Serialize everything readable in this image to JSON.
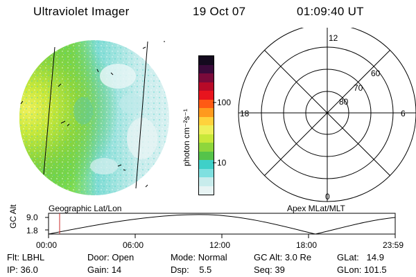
{
  "header": {
    "instrument": "Ultraviolet Imager",
    "date": "19 Oct 07",
    "time": "01:09:40 UT"
  },
  "colorbar": {
    "unit_label": "photon cm⁻²s⁻¹",
    "tick_10": "10",
    "tick_100": "100",
    "colors": [
      "#e8f4f4",
      "#c8ecec",
      "#7fe0e0",
      "#3fd0c8",
      "#55c34a",
      "#8ed63c",
      "#c8e83a",
      "#eef05a",
      "#ffd23c",
      "#ff9a1e",
      "#ff5a14",
      "#e8141e",
      "#b80a28",
      "#7a0a3a",
      "#3a0a3a",
      "#140a1e"
    ]
  },
  "polar": {
    "mlt_top": "12",
    "mlt_left": "18",
    "mlt_right": "6",
    "mlt_bottom": "0",
    "lat_60": "60",
    "lat_70": "70",
    "lat_80": "80"
  },
  "labels": {
    "left_panel": "Geographic Lat/Lon",
    "right_panel": "Apex  MLat/MLT"
  },
  "orbit": {
    "axis_label": "GC Alt",
    "y_max": "9.0",
    "y_min": "1.8",
    "ticks": [
      "00:00",
      "06:00",
      "12:00",
      "18:00",
      "23:59"
    ]
  },
  "info": {
    "filter_label": "Flt:",
    "filter_value": "LBHL",
    "ip_label": "IP:",
    "ip_value": "36.0",
    "door_label": "Door:",
    "door_value": "Open",
    "gain_label": "Gain:",
    "gain_value": "14",
    "mode_label": "Mode:",
    "mode_value": "Normal",
    "dsp_label": "Dsp:",
    "dsp_value": "5.5",
    "gcalt_label": "GC Alt:",
    "gcalt_value": "3.0 Re",
    "seq_label": "Seq:",
    "seq_value": "39",
    "glat_label": "GLat:",
    "glat_value": "14.9",
    "glon_label": "GLon:",
    "glon_value": "101.5"
  }
}
